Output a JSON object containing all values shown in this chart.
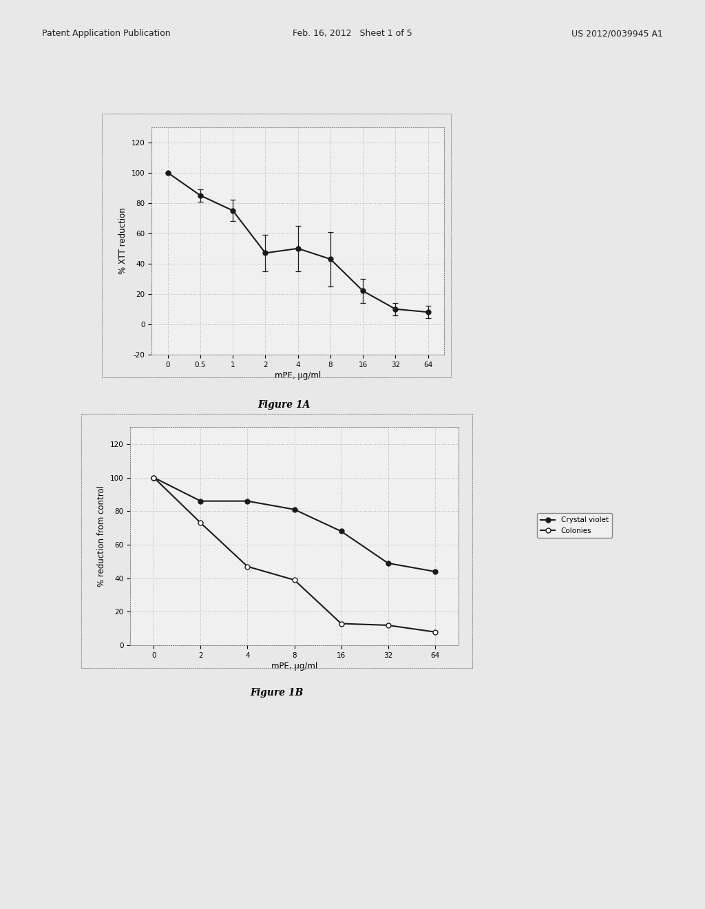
{
  "fig1a": {
    "x": [
      0,
      0.5,
      1,
      2,
      4,
      8,
      16,
      32,
      64
    ],
    "y": [
      100,
      85,
      75,
      47,
      50,
      43,
      22,
      10,
      8
    ],
    "yerr": [
      0,
      4,
      7,
      12,
      15,
      18,
      8,
      4,
      4
    ],
    "xlabel": "mPE, μg/ml",
    "ylabel": "% XTT reduction",
    "xtick_labels": [
      "0",
      "0.5",
      "1",
      "2",
      "4",
      "8",
      "16",
      "32",
      "64"
    ],
    "ylim": [
      -20,
      130
    ],
    "yticks": [
      -20,
      0,
      20,
      40,
      60,
      80,
      100,
      120
    ],
    "figcaption": "Figure 1A"
  },
  "fig1b": {
    "crystal_violet": {
      "x": [
        0,
        2,
        4,
        8,
        16,
        32,
        64
      ],
      "y": [
        100,
        86,
        86,
        81,
        68,
        49,
        44
      ],
      "label": "Crystal violet"
    },
    "colonies": {
      "x": [
        0,
        2,
        4,
        8,
        16,
        32,
        64
      ],
      "y": [
        100,
        73,
        47,
        39,
        13,
        12,
        8
      ],
      "label": "Colonies"
    },
    "xlabel": "mPE, μg/ml",
    "ylabel": "% reduction from control",
    "xtick_labels": [
      "0",
      "2",
      "4",
      "8",
      "16",
      "32",
      "64"
    ],
    "ylim": [
      0,
      130
    ],
    "yticks": [
      0,
      20,
      40,
      60,
      80,
      100,
      120
    ],
    "figcaption": "Figure 1B"
  },
  "page_header": {
    "left": "Patent Application Publication",
    "center": "Feb. 16, 2012   Sheet 1 of 5",
    "right": "US 2012/0039945 A1"
  },
  "background_color": "#e8e8e8",
  "plot_bg": "#f0f0f0",
  "line_color": "#1a1a1a",
  "grid_color": "#aaaaaa",
  "marker_size": 5,
  "line_width": 1.5
}
